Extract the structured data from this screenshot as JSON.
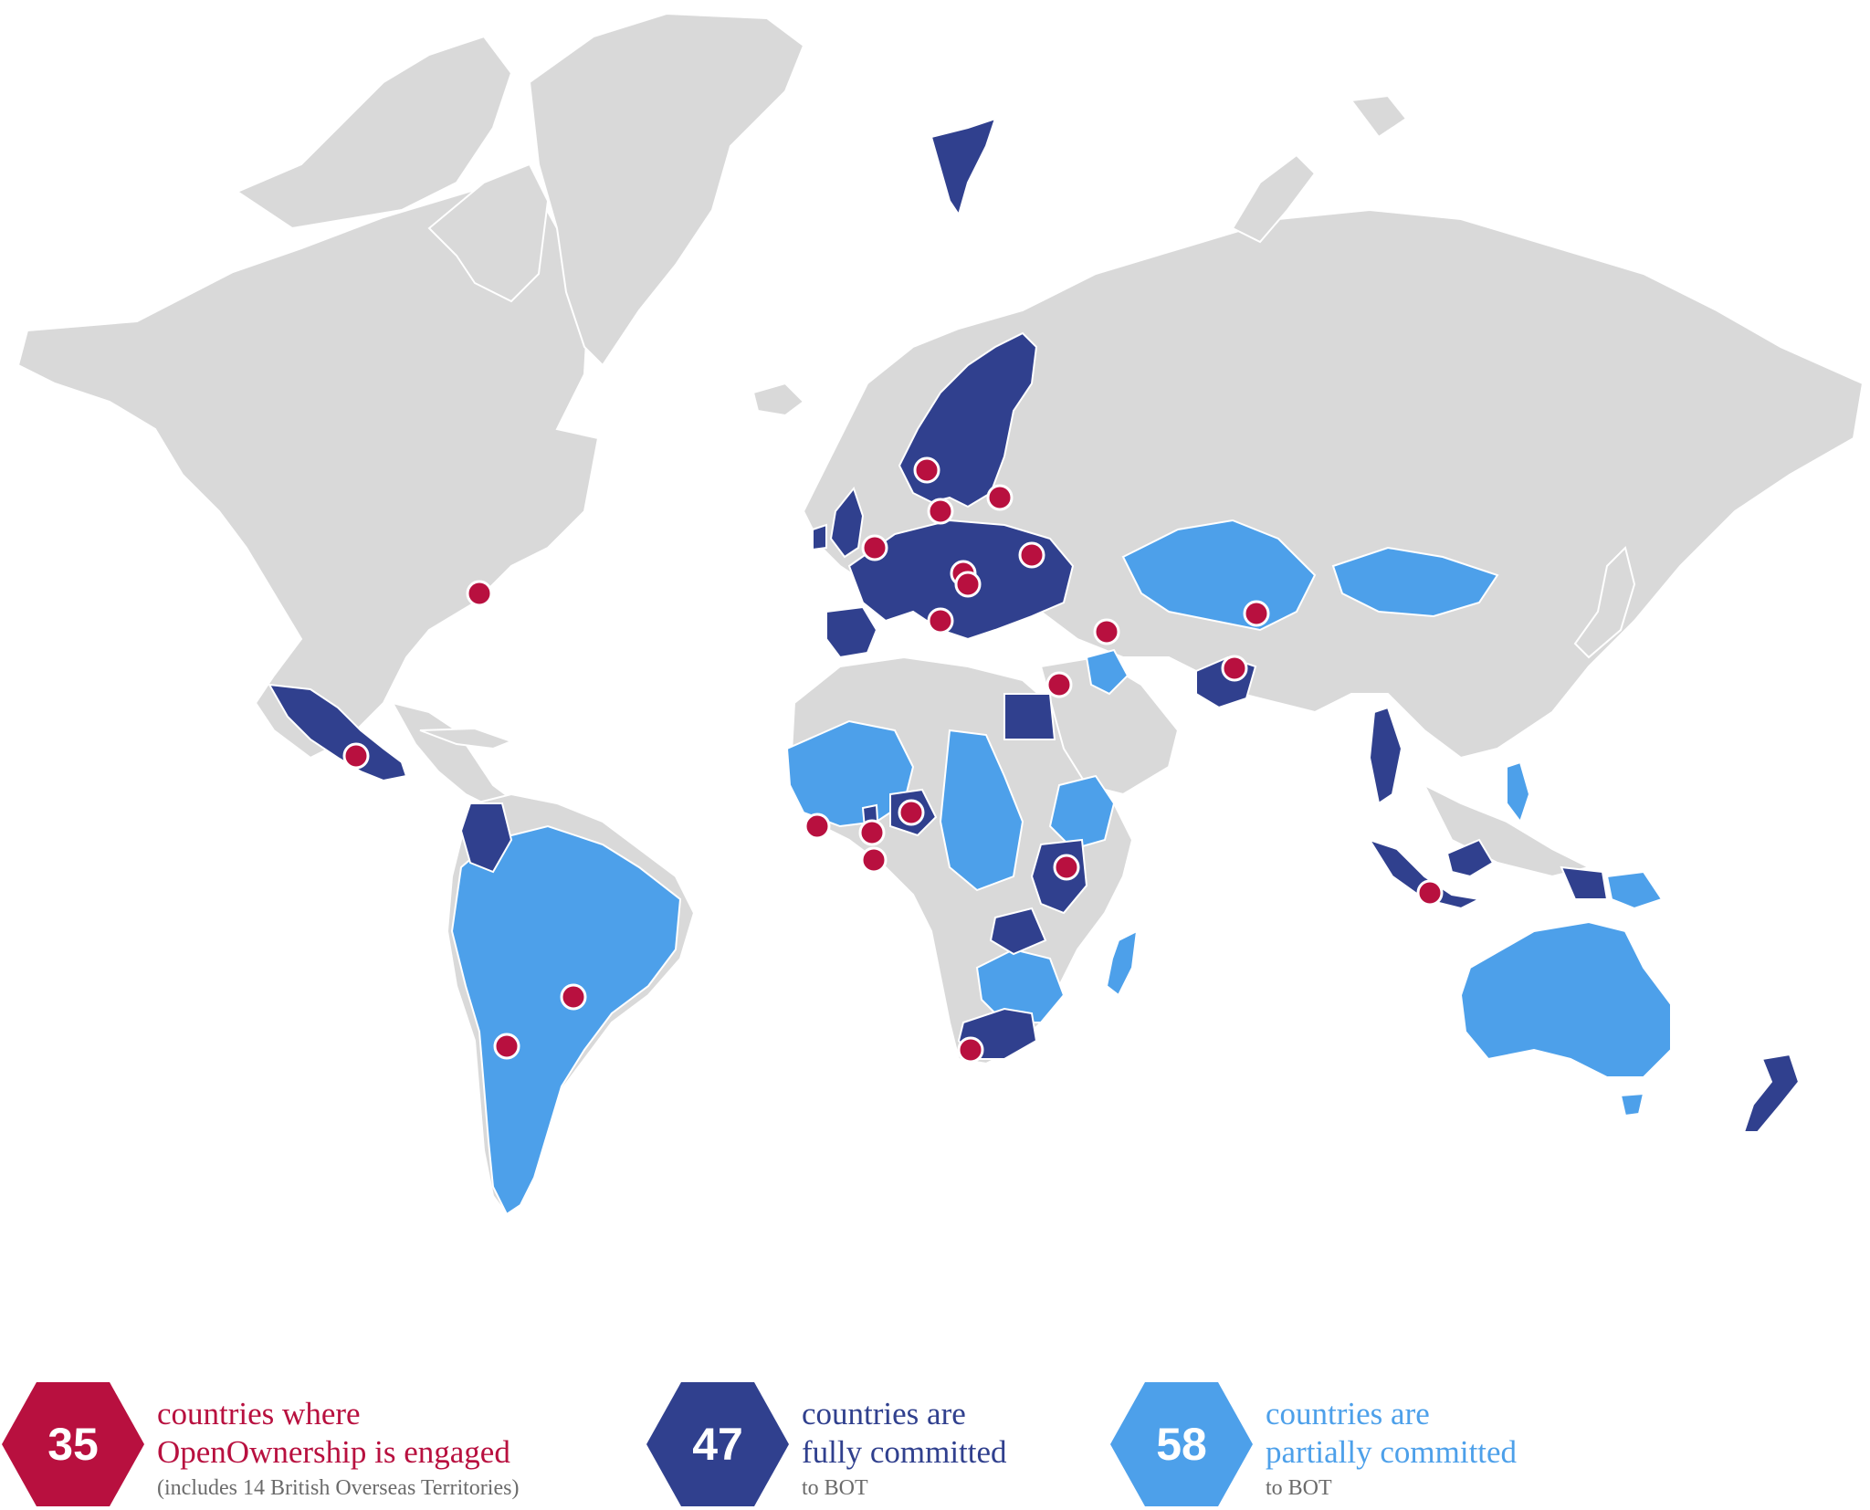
{
  "colors": {
    "land": "#d9d9d9",
    "fully_committed": "#30408e",
    "partially_committed": "#4da0ea",
    "engaged_marker": "#b8103f",
    "ocean": "#ffffff"
  },
  "legend": [
    {
      "count": "35",
      "line1": "countries where",
      "line2": "OpenOwnership is engaged",
      "note": "(includes 14 British Overseas Territories)",
      "color": "#b8103f"
    },
    {
      "count": "47",
      "line1": "countries are",
      "line2": "fully committed",
      "note": "to BOT",
      "color": "#30408e"
    },
    {
      "count": "58",
      "line1": "countries are",
      "line2": "partially committed",
      "note": "to BOT",
      "color": "#4da0ea"
    }
  ]
}
